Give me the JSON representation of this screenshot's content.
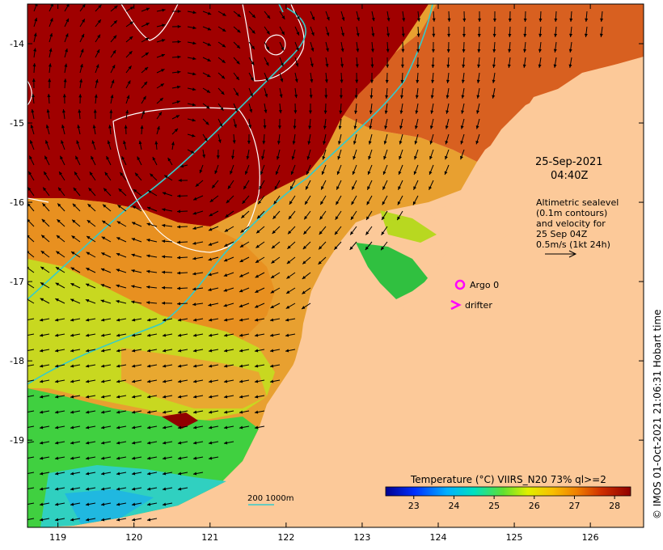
{
  "map": {
    "date": "25-Sep-2021",
    "time": "04:40Z",
    "altimetry_lines": [
      "Altimetric sealevel",
      "(0.1m contours)",
      "and velocity for",
      "25 Sep 04Z",
      "0.5m/s (1kt 24h)"
    ],
    "argo_label": "Argo 0",
    "drifter_label": "drifter",
    "scale_label": "200  1000m",
    "colorbar_title": "Temperature (°C) VIIRS_N20 73% ql>=2",
    "colorbar_ticks": [
      "23",
      "24",
      "25",
      "26",
      "27",
      "28"
    ],
    "lon_ticks": [
      "119",
      "120",
      "121",
      "122",
      "123",
      "124",
      "125",
      "126"
    ],
    "lat_ticks": [
      "-14",
      "-15",
      "-16",
      "-17",
      "-18",
      "-19"
    ],
    "credit": "© IMOS 01-Oct-2021 21:06:31 Hobart time",
    "marker_colors": {
      "argo": "#ff00ff",
      "drifter": "#ff00ff",
      "isobath": "#33cccc",
      "contour": "#ffffff",
      "land": "#fcc999"
    },
    "temperature_range": [
      22.3,
      28.4
    ],
    "lon_range": [
      118.6,
      126.7
    ],
    "lat_range": [
      -20.1,
      -13.5
    ]
  }
}
